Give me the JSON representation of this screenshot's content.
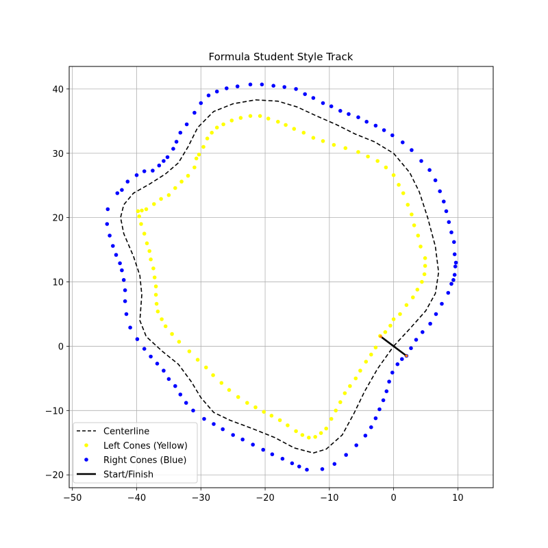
{
  "chart_data": {
    "type": "scatter",
    "title": "Formula Student Style Track",
    "xlabel": "",
    "ylabel": "",
    "xlim": [
      -50.5,
      15.5
    ],
    "ylim": [
      -22,
      43.5
    ],
    "xticks": [
      -50,
      -40,
      -30,
      -20,
      -10,
      0,
      10
    ],
    "yticks": [
      -20,
      -10,
      0,
      10,
      20,
      30,
      40
    ],
    "xtick_labels": [
      "−50",
      "−40",
      "−30",
      "−20",
      "−10",
      "0",
      "10"
    ],
    "ytick_labels": [
      "−20",
      "−10",
      "0",
      "10",
      "20",
      "30",
      "40"
    ],
    "grid": true,
    "legend_position": "lower-left",
    "series": [
      {
        "name": "Centerline",
        "kind": "line",
        "style": "dashed",
        "color": "#000000",
        "points": [
          [
            0,
            0
          ],
          [
            2.5,
            2.7
          ],
          [
            5,
            5.5
          ],
          [
            6.5,
            8.2
          ],
          [
            7,
            11.5
          ],
          [
            6.5,
            15.5
          ],
          [
            5.3,
            20
          ],
          [
            4,
            24
          ],
          [
            2.5,
            27
          ],
          [
            0,
            30
          ],
          [
            -3,
            31.8
          ],
          [
            -6,
            33
          ],
          [
            -9,
            34.5
          ],
          [
            -12,
            35.8
          ],
          [
            -15,
            37.2
          ],
          [
            -18,
            38.1
          ],
          [
            -21.5,
            38.3
          ],
          [
            -25,
            37.7
          ],
          [
            -28,
            36.5
          ],
          [
            -30.5,
            34
          ],
          [
            -32,
            31
          ],
          [
            -33.5,
            28.5
          ],
          [
            -35.5,
            26.8
          ],
          [
            -38,
            25.2
          ],
          [
            -40.5,
            23.8
          ],
          [
            -42,
            22
          ],
          [
            -42.5,
            20
          ],
          [
            -42,
            17.5
          ],
          [
            -40.5,
            14
          ],
          [
            -39.5,
            11
          ],
          [
            -39.2,
            8
          ],
          [
            -39.5,
            4
          ],
          [
            -38.5,
            1.5
          ],
          [
            -36,
            -0.8
          ],
          [
            -33.5,
            -2.8
          ],
          [
            -31.5,
            -5.5
          ],
          [
            -30,
            -8
          ],
          [
            -28,
            -10.3
          ],
          [
            -25.5,
            -11.5
          ],
          [
            -22,
            -12.8
          ],
          [
            -18.5,
            -14.2
          ],
          [
            -15.5,
            -15.8
          ],
          [
            -12.5,
            -16.6
          ],
          [
            -10.5,
            -16
          ],
          [
            -8,
            -13.8
          ],
          [
            -6.2,
            -10.5
          ],
          [
            -4.5,
            -7
          ],
          [
            -2.5,
            -3.5
          ],
          [
            0,
            0
          ]
        ]
      },
      {
        "name": "Left Cones (Yellow)",
        "kind": "scatter",
        "color": "#ffff00",
        "points": [
          [
            -2.1,
            1.6
          ],
          [
            -1.3,
            2.2
          ],
          [
            -0.5,
            3.2
          ],
          [
            0,
            4.2
          ],
          [
            1,
            5
          ],
          [
            2,
            6.4
          ],
          [
            3,
            7.6
          ],
          [
            3.7,
            8.8
          ],
          [
            4.4,
            10
          ],
          [
            4.8,
            11.2
          ],
          [
            4.9,
            12.5
          ],
          [
            4.9,
            13.7
          ],
          [
            4.2,
            15.5
          ],
          [
            3.8,
            17.2
          ],
          [
            3.2,
            18.8
          ],
          [
            2.8,
            20.5
          ],
          [
            2.2,
            22
          ],
          [
            1.5,
            23.8
          ],
          [
            0.8,
            25.1
          ],
          [
            0,
            26.6
          ],
          [
            -1.2,
            27.8
          ],
          [
            -2.5,
            28.8
          ],
          [
            -4,
            29.5
          ],
          [
            -5.5,
            30.2
          ],
          [
            -7.5,
            30.8
          ],
          [
            -9.3,
            31.3
          ],
          [
            -11,
            31.9
          ],
          [
            -12.5,
            32.4
          ],
          [
            -14,
            33.2
          ],
          [
            -15.5,
            33.8
          ],
          [
            -16.8,
            34.4
          ],
          [
            -18,
            34.9
          ],
          [
            -19.5,
            35.4
          ],
          [
            -20.8,
            35.8
          ],
          [
            -22.3,
            35.8
          ],
          [
            -23.8,
            35.5
          ],
          [
            -25.2,
            35.1
          ],
          [
            -26.5,
            34.5
          ],
          [
            -27.5,
            34
          ],
          [
            -28.3,
            33.2
          ],
          [
            -29,
            32.3
          ],
          [
            -29.6,
            31
          ],
          [
            -30.3,
            29.8
          ],
          [
            -30.7,
            29.2
          ],
          [
            -31,
            27.8
          ],
          [
            -32,
            26.5
          ],
          [
            -33,
            25.6
          ],
          [
            -34,
            24.6
          ],
          [
            -35,
            23.5
          ],
          [
            -36.2,
            22.9
          ],
          [
            -37.3,
            22.1
          ],
          [
            -38.5,
            21.3
          ],
          [
            -39.2,
            21.1
          ],
          [
            -39.8,
            21
          ],
          [
            -39.6,
            20.2
          ],
          [
            -39.3,
            19
          ],
          [
            -38.8,
            17.5
          ],
          [
            -38.4,
            16
          ],
          [
            -38,
            14.8
          ],
          [
            -37.8,
            13.5
          ],
          [
            -37.4,
            12.1
          ],
          [
            -37.2,
            10.7
          ],
          [
            -37,
            9.3
          ],
          [
            -37,
            8
          ],
          [
            -36.9,
            6.6
          ],
          [
            -36.7,
            5.4
          ],
          [
            -36.1,
            4.2
          ],
          [
            -35.5,
            3.1
          ],
          [
            -34.5,
            1.9
          ],
          [
            -33.4,
            0.7
          ],
          [
            -31.8,
            -0.8
          ],
          [
            -30.5,
            -2.1
          ],
          [
            -29.2,
            -3.3
          ],
          [
            -28.1,
            -4.5
          ],
          [
            -26.8,
            -5.7
          ],
          [
            -25.6,
            -6.8
          ],
          [
            -24.2,
            -7.9
          ],
          [
            -22.8,
            -8.8
          ],
          [
            -21.5,
            -9.5
          ],
          [
            -20.2,
            -10.2
          ],
          [
            -19,
            -10.8
          ],
          [
            -17.7,
            -11.5
          ],
          [
            -16.5,
            -12.3
          ],
          [
            -15.2,
            -13.2
          ],
          [
            -14.2,
            -13.8
          ],
          [
            -13.2,
            -14.2
          ],
          [
            -12.2,
            -14.1
          ],
          [
            -11.3,
            -13.5
          ],
          [
            -10.5,
            -12.8
          ],
          [
            -9.7,
            -11.3
          ],
          [
            -9,
            -10
          ],
          [
            -8.3,
            -8.7
          ],
          [
            -7.6,
            -7.3
          ],
          [
            -6.8,
            -6.2
          ],
          [
            -5.9,
            -5
          ],
          [
            -5.2,
            -3.8
          ],
          [
            -4.3,
            -2.4
          ],
          [
            -3.5,
            -1.3
          ],
          [
            -2.8,
            -0.2
          ]
        ]
      },
      {
        "name": "Right Cones (Blue)",
        "kind": "scatter",
        "color": "#0000ff",
        "points": [
          [
            2,
            -1.5
          ],
          [
            2.7,
            -0.3
          ],
          [
            3.5,
            1
          ],
          [
            4.5,
            2.2
          ],
          [
            5.7,
            3.5
          ],
          [
            6.6,
            5
          ],
          [
            7.5,
            6.6
          ],
          [
            8.5,
            8.3
          ],
          [
            9,
            9.7
          ],
          [
            9.3,
            10.3
          ],
          [
            9.5,
            11.1
          ],
          [
            9.6,
            12.4
          ],
          [
            9.7,
            13
          ],
          [
            9.5,
            14.3
          ],
          [
            9.4,
            16.2
          ],
          [
            9,
            17.7
          ],
          [
            8.6,
            19.3
          ],
          [
            8.2,
            21
          ],
          [
            7.8,
            22.5
          ],
          [
            7.2,
            24.1
          ],
          [
            6.5,
            25.8
          ],
          [
            5.6,
            27.4
          ],
          [
            4.3,
            28.8
          ],
          [
            2.8,
            30.5
          ],
          [
            1.4,
            31.7
          ],
          [
            -0.2,
            32.8
          ],
          [
            -1.5,
            33.6
          ],
          [
            -2.8,
            34.3
          ],
          [
            -4.2,
            34.9
          ],
          [
            -5.5,
            35.6
          ],
          [
            -7,
            36.1
          ],
          [
            -8.3,
            36.6
          ],
          [
            -9.7,
            37.3
          ],
          [
            -11,
            37.8
          ],
          [
            -12.5,
            38.6
          ],
          [
            -13.8,
            39.2
          ],
          [
            -15.2,
            40
          ],
          [
            -17,
            40.3
          ],
          [
            -18.7,
            40.5
          ],
          [
            -20.5,
            40.7
          ],
          [
            -22.3,
            40.7
          ],
          [
            -24.3,
            40.4
          ],
          [
            -26,
            40.1
          ],
          [
            -27.5,
            39.6
          ],
          [
            -28.8,
            39
          ],
          [
            -30,
            37.8
          ],
          [
            -31,
            36.3
          ],
          [
            -32.2,
            34.5
          ],
          [
            -33.2,
            33.2
          ],
          [
            -33.8,
            31.8
          ],
          [
            -34.3,
            30.7
          ],
          [
            -35.2,
            29.4
          ],
          [
            -35.8,
            28.8
          ],
          [
            -36.5,
            28.1
          ],
          [
            -37.5,
            27.3
          ],
          [
            -38.8,
            27.2
          ],
          [
            -40,
            26.6
          ],
          [
            -41.4,
            25.6
          ],
          [
            -42.3,
            24.3
          ],
          [
            -43,
            23.8
          ],
          [
            -44.5,
            21.3
          ],
          [
            -44.6,
            19
          ],
          [
            -44.2,
            17.2
          ],
          [
            -43.7,
            15.6
          ],
          [
            -43.2,
            14.2
          ],
          [
            -42.6,
            12.9
          ],
          [
            -42.3,
            11.8
          ],
          [
            -42,
            10.3
          ],
          [
            -41.8,
            8.7
          ],
          [
            -41.8,
            7
          ],
          [
            -41.6,
            5
          ],
          [
            -41,
            2.9
          ],
          [
            -39.9,
            1.1
          ],
          [
            -38.8,
            -0.4
          ],
          [
            -37.8,
            -1.6
          ],
          [
            -36.8,
            -2.7
          ],
          [
            -35.8,
            -3.8
          ],
          [
            -35,
            -5.1
          ],
          [
            -34,
            -6.2
          ],
          [
            -33.2,
            -7.5
          ],
          [
            -32.3,
            -8.8
          ],
          [
            -31.2,
            -10
          ],
          [
            -29.5,
            -11.3
          ],
          [
            -28,
            -12.1
          ],
          [
            -26.6,
            -12.9
          ],
          [
            -25,
            -13.8
          ],
          [
            -23.5,
            -14.5
          ],
          [
            -21.9,
            -15.3
          ],
          [
            -20.3,
            -16.1
          ],
          [
            -18.9,
            -16.8
          ],
          [
            -17.3,
            -17.5
          ],
          [
            -15.8,
            -18.2
          ],
          [
            -14.7,
            -18.7
          ],
          [
            -13.5,
            -19.2
          ],
          [
            -11.1,
            -19.1
          ],
          [
            -9.2,
            -18.3
          ],
          [
            -7.4,
            -16.9
          ],
          [
            -5.8,
            -15.4
          ],
          [
            -4.4,
            -13.9
          ],
          [
            -3.5,
            -12.6
          ],
          [
            -2.8,
            -11.2
          ],
          [
            -2.2,
            -9.8
          ],
          [
            -1.6,
            -8.4
          ],
          [
            -1.1,
            -7
          ],
          [
            -0.7,
            -5.5
          ],
          [
            -0.2,
            -4.1
          ],
          [
            0.6,
            -2.8
          ],
          [
            1.3,
            -2
          ]
        ]
      }
    ],
    "start_finish": {
      "name": "Start/Finish",
      "color": "#000000",
      "endpoint_color": "#ff7f0e",
      "from": [
        -2,
        1.5
      ],
      "to": [
        2,
        -1.5
      ]
    }
  }
}
